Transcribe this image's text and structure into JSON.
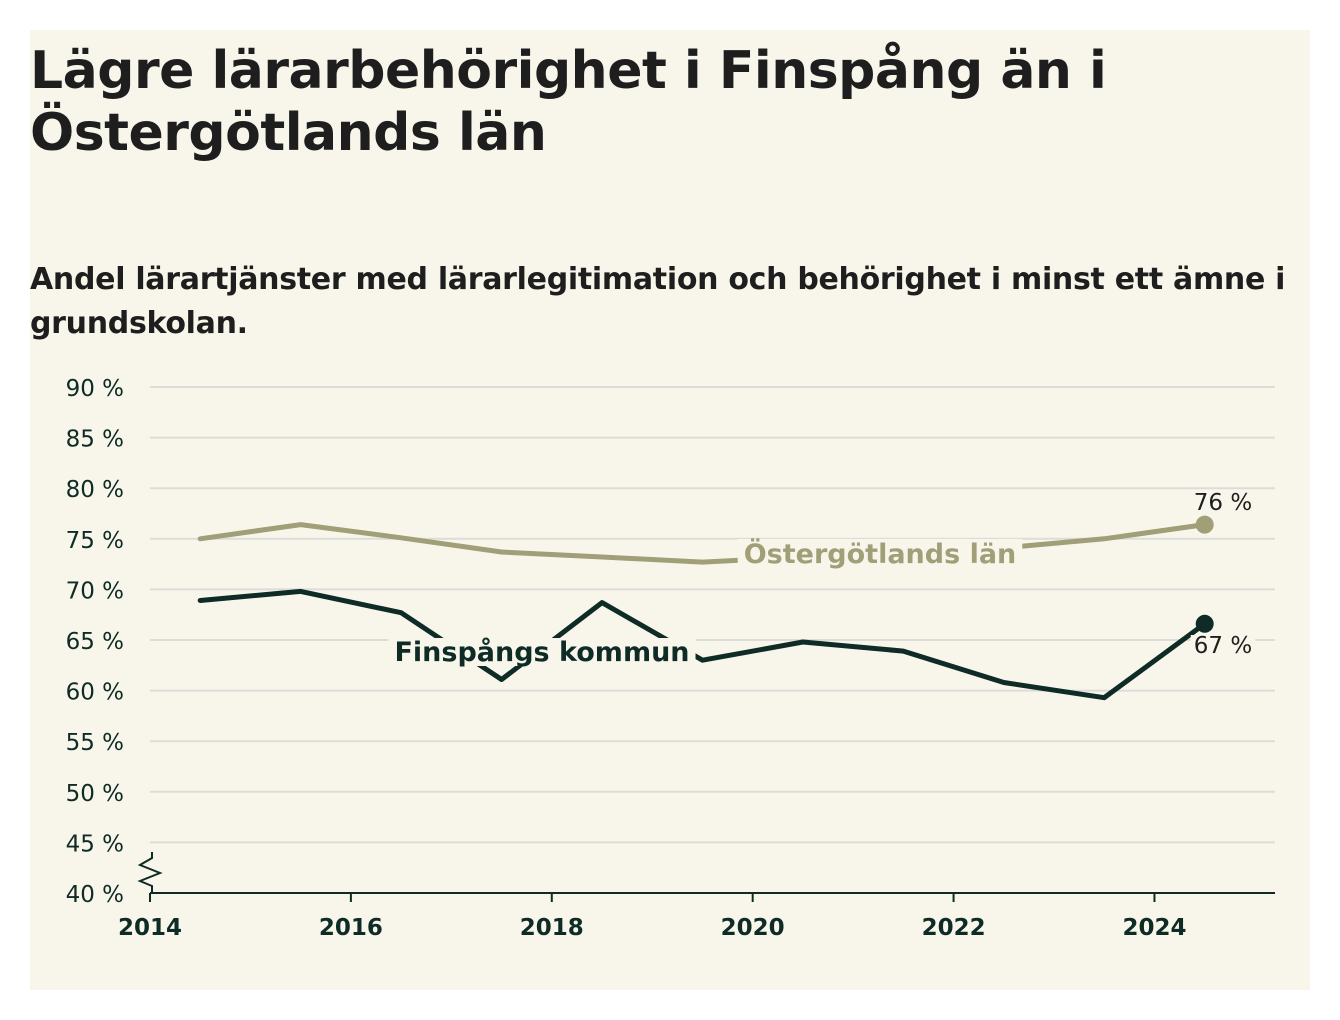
{
  "page": {
    "background": "#f8f6ea"
  },
  "title": "Lägre lärarbehörighet i Finspång än i Östergötlands län",
  "subtitle": "Andel lärartjänster med lärarlegitimation och behörighet i minst ett ämne i grundskolan.",
  "chart_data": {
    "type": "line",
    "x": [
      2014.5,
      2015.5,
      2016.5,
      2017.5,
      2018.5,
      2019.5,
      2020.5,
      2021.5,
      2022.5,
      2023.5,
      2024.5
    ],
    "ylim": [
      40,
      90
    ],
    "xlim": [
      2014,
      2025.2
    ],
    "y_ticks": [
      40,
      45,
      50,
      55,
      60,
      65,
      70,
      75,
      80,
      85,
      90
    ],
    "y_tick_labels": [
      "40 %",
      "45 %",
      "50 %",
      "55 %",
      "60 %",
      "65 %",
      "70 %",
      "75 %",
      "80 %",
      "85 %",
      "90 %"
    ],
    "x_ticks": [
      2014,
      2016,
      2018,
      2020,
      2022,
      2024
    ],
    "x_tick_labels": [
      "2014",
      "2016",
      "2018",
      "2020",
      "2022",
      "2024"
    ],
    "y_axis_break": true,
    "grid": true,
    "series": [
      {
        "name": "Östergötlands län",
        "color": "#a09f78",
        "values": [
          75.0,
          76.4,
          75.1,
          73.7,
          73.2,
          72.7,
          73.2,
          73.5,
          74.1,
          75.0,
          76.4
        ],
        "end_label": "76 %"
      },
      {
        "name": "Finspångs kommun",
        "color": "#0e2b26",
        "values": [
          68.9,
          69.8,
          67.7,
          61.1,
          68.7,
          63.0,
          64.8,
          63.9,
          60.8,
          59.3,
          66.6
        ],
        "end_label": "67 %"
      }
    ]
  }
}
